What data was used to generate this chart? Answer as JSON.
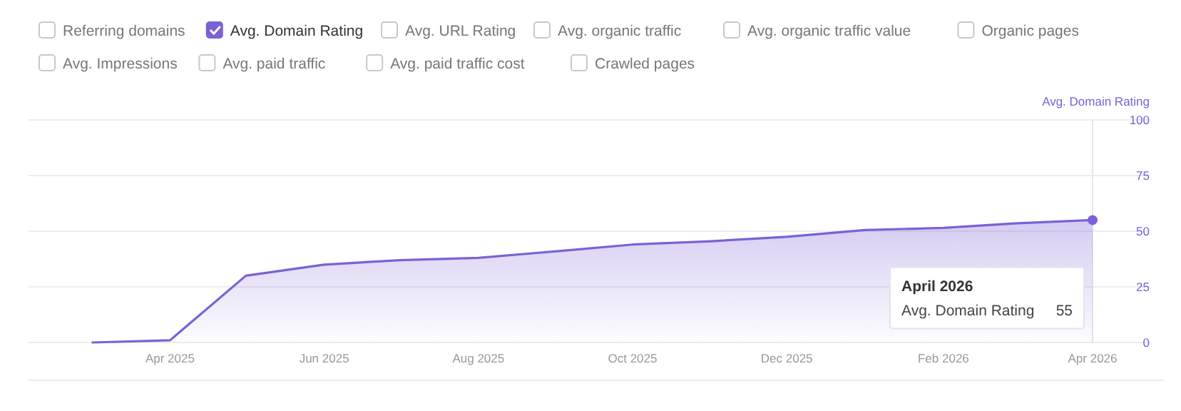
{
  "chart_data": {
    "type": "area",
    "ylabel": "Avg. Domain Rating",
    "x": [
      "2025-03",
      "2025-04",
      "2025-05",
      "2025-06",
      "2025-07",
      "2025-08",
      "2025-09",
      "2025-10",
      "2025-11",
      "2025-12",
      "2026-01",
      "2026-02",
      "2026-03",
      "2026-04"
    ],
    "series": [
      {
        "name": "Avg. Domain Rating",
        "color": "#7b61d6",
        "values": [
          0,
          1,
          30,
          35,
          37,
          38,
          41,
          44,
          45.5,
          47.5,
          50.5,
          51.5,
          53.5,
          55
        ]
      }
    ],
    "xlim": [
      "2025-02-04",
      "2026-04"
    ],
    "xticks": [
      {
        "value": "2025-04",
        "label": "Apr 2025"
      },
      {
        "value": "2025-06",
        "label": "Jun 2025"
      },
      {
        "value": "2025-08",
        "label": "Aug 2025"
      },
      {
        "value": "2025-10",
        "label": "Oct 2025"
      },
      {
        "value": "2025-12",
        "label": "Dec 2025"
      },
      {
        "value": "2026-02",
        "label": "Feb 2026"
      },
      {
        "value": "2026-04",
        "label": "Apr 2026"
      }
    ],
    "ylim": [
      0,
      100
    ],
    "yticks": [
      0,
      25,
      50,
      75,
      100
    ],
    "grid": "y",
    "legend": "top",
    "marker": "none",
    "ref_lines": [
      {
        "axis": "x",
        "value": "2026-04",
        "color": "#e6e6ea"
      }
    ],
    "annotations": [
      "Referring domains",
      "Avg. URL Rating",
      "Avg. organic traffic",
      "Avg. organic traffic value",
      "Organic pages",
      "Avg. Impressions",
      "Avg. paid traffic",
      "Avg. paid traffic cost",
      "Crawled pages",
      {
        "text": "April 2026"
      },
      {
        "text": "55"
      }
    ]
  }
}
